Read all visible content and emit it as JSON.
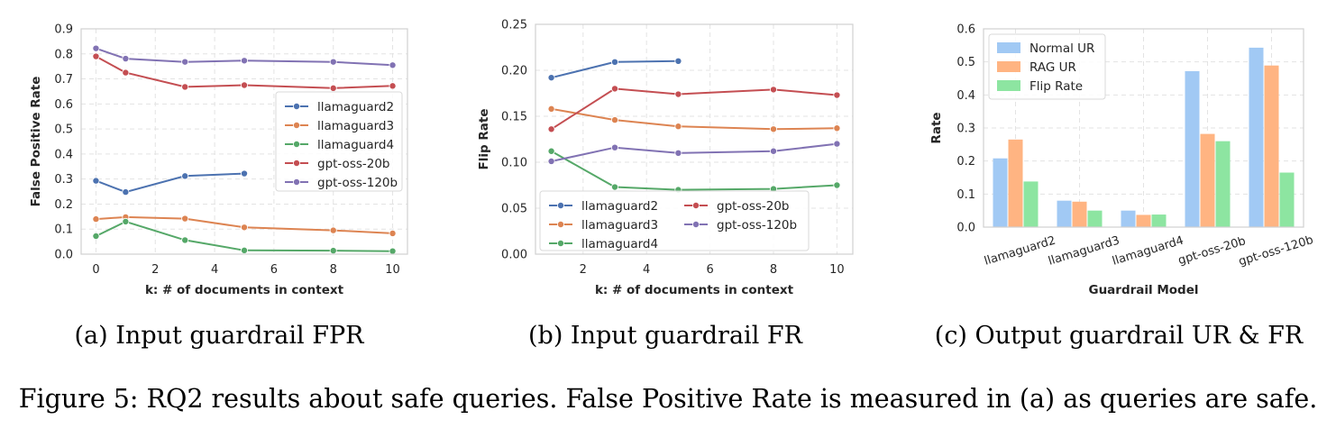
{
  "figure_caption": "Figure 5: RQ2 results about safe queries. False Positive Rate is measured in (a) as queries are safe.",
  "colors": {
    "llamaguard2": "#4c72b0",
    "llamaguard3": "#dd8452",
    "llamaguard4": "#55a868",
    "gpt-oss-20b": "#c44e52",
    "gpt-oss-120b": "#8172b3",
    "normal_ur": "#a1c9f4",
    "rag_ur": "#ffb482",
    "flip_rate": "#8de5a1"
  },
  "chart_data": [
    {
      "id": "a",
      "type": "line",
      "caption": "(a) Input guardrail FPR",
      "xlabel": "k: # of documents in context",
      "ylabel": "False Positive Rate",
      "xlim": [
        -0.5,
        10.5
      ],
      "ylim": [
        0,
        0.9
      ],
      "xticks": [
        0,
        2,
        4,
        6,
        8,
        10
      ],
      "yticks": [
        0.0,
        0.1,
        0.2,
        0.3,
        0.4,
        0.5,
        0.6,
        0.7,
        0.8,
        0.9
      ],
      "grid": true,
      "legend_position": "center-right",
      "legend_columns": 1,
      "series": [
        {
          "name": "llamaguard2",
          "x": [
            0,
            1,
            3,
            5
          ],
          "values": [
            0.293,
            0.248,
            0.312,
            0.322
          ]
        },
        {
          "name": "llamaguard3",
          "x": [
            0,
            1,
            3,
            5,
            8,
            10
          ],
          "values": [
            0.14,
            0.148,
            0.142,
            0.107,
            0.095,
            0.083
          ]
        },
        {
          "name": "llamaguard4",
          "x": [
            0,
            1,
            3,
            5,
            8,
            10
          ],
          "values": [
            0.072,
            0.13,
            0.056,
            0.015,
            0.014,
            0.012
          ]
        },
        {
          "name": "gpt-oss-20b",
          "x": [
            0,
            1,
            3,
            5,
            8,
            10
          ],
          "values": [
            0.79,
            0.725,
            0.668,
            0.675,
            0.663,
            0.672
          ]
        },
        {
          "name": "gpt-oss-120b",
          "x": [
            0,
            1,
            3,
            5,
            8,
            10
          ],
          "values": [
            0.822,
            0.781,
            0.768,
            0.773,
            0.768,
            0.755
          ]
        }
      ]
    },
    {
      "id": "b",
      "type": "line",
      "caption": "(b) Input guardrail FR",
      "xlabel": "k: # of documents in context",
      "ylabel": "Flip Rate",
      "xlim": [
        0.5,
        10.5
      ],
      "ylim": [
        0,
        0.25
      ],
      "xticks": [
        2,
        4,
        6,
        8,
        10
      ],
      "yticks": [
        0.0,
        0.05,
        0.1,
        0.15,
        0.2,
        0.25
      ],
      "grid": true,
      "legend_position": "lower-left",
      "legend_columns": 2,
      "series": [
        {
          "name": "llamaguard2",
          "x": [
            1,
            3,
            5
          ],
          "values": [
            0.192,
            0.209,
            0.21
          ]
        },
        {
          "name": "llamaguard3",
          "x": [
            1,
            3,
            5,
            8,
            10
          ],
          "values": [
            0.158,
            0.146,
            0.139,
            0.136,
            0.137
          ]
        },
        {
          "name": "llamaguard4",
          "x": [
            1,
            3,
            5,
            8,
            10
          ],
          "values": [
            0.112,
            0.073,
            0.07,
            0.071,
            0.075
          ]
        },
        {
          "name": "gpt-oss-20b",
          "x": [
            1,
            3,
            5,
            8,
            10
          ],
          "values": [
            0.136,
            0.18,
            0.174,
            0.179,
            0.173
          ]
        },
        {
          "name": "gpt-oss-120b",
          "x": [
            1,
            3,
            5,
            8,
            10
          ],
          "values": [
            0.101,
            0.116,
            0.11,
            0.112,
            0.12
          ]
        }
      ]
    },
    {
      "id": "c",
      "type": "bar",
      "caption": "(c) Output guardrail UR & FR",
      "xlabel": "Guardrail Model",
      "ylabel": "Rate",
      "ylim": [
        0,
        0.6
      ],
      "yticks": [
        0.0,
        0.1,
        0.2,
        0.3,
        0.4,
        0.5,
        0.6
      ],
      "grid": true,
      "legend_position": "upper-left",
      "legend_columns": 1,
      "categories": [
        "llamaguard2",
        "llamaguard3",
        "llamaguard4",
        "gpt-oss-20b",
        "gpt-oss-120b"
      ],
      "series": [
        {
          "name": "Normal UR",
          "values": [
            0.208,
            0.08,
            0.05,
            0.472,
            0.543
          ]
        },
        {
          "name": "RAG UR",
          "values": [
            0.265,
            0.077,
            0.037,
            0.282,
            0.489
          ]
        },
        {
          "name": "Flip Rate",
          "values": [
            0.138,
            0.05,
            0.038,
            0.26,
            0.165
          ]
        }
      ]
    }
  ]
}
